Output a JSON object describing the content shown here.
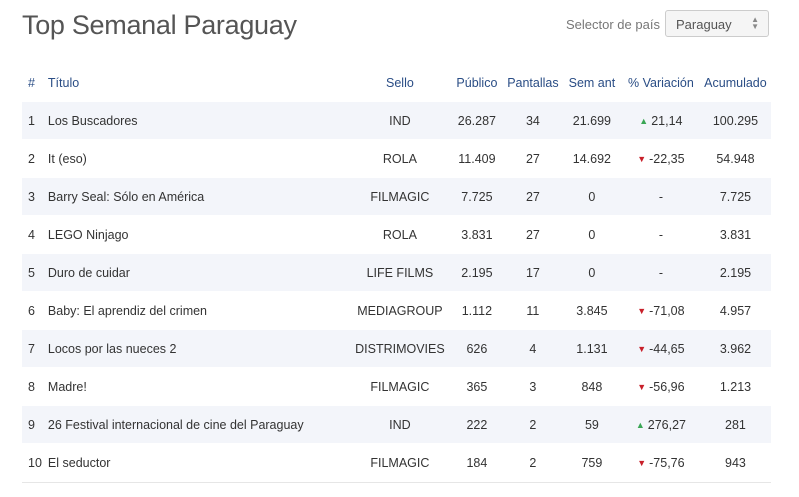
{
  "header": {
    "title": "Top Semanal Paraguay",
    "selector_label": "Selector de país",
    "selected_country": "Paraguay"
  },
  "table": {
    "columns": [
      "#",
      "Título",
      "Sello",
      "Público",
      "Pantallas",
      "Sem ant",
      "% Variación",
      "Acumulado"
    ],
    "rows": [
      {
        "rank": "1",
        "title": "Los Buscadores",
        "label": "IND",
        "audience": "26.287",
        "screens": "34",
        "prev_week": "21.699",
        "variation": "21,14",
        "trend": "up",
        "cumulative": "100.295"
      },
      {
        "rank": "2",
        "title": "It (eso)",
        "label": "ROLA",
        "audience": "11.409",
        "screens": "27",
        "prev_week": "14.692",
        "variation": "-22,35",
        "trend": "down",
        "cumulative": "54.948"
      },
      {
        "rank": "3",
        "title": "Barry Seal: Sólo en América",
        "label": "FILMAGIC",
        "audience": "7.725",
        "screens": "27",
        "prev_week": "0",
        "variation": "-",
        "trend": "none",
        "cumulative": "7.725"
      },
      {
        "rank": "4",
        "title": "LEGO Ninjago",
        "label": "ROLA",
        "audience": "3.831",
        "screens": "27",
        "prev_week": "0",
        "variation": "-",
        "trend": "none",
        "cumulative": "3.831"
      },
      {
        "rank": "5",
        "title": "Duro de cuidar",
        "label": "LIFE FILMS",
        "audience": "2.195",
        "screens": "17",
        "prev_week": "0",
        "variation": "-",
        "trend": "none",
        "cumulative": "2.195"
      },
      {
        "rank": "6",
        "title": "Baby: El aprendiz del crimen",
        "label": "MEDIAGROUP",
        "audience": "1.112",
        "screens": "11",
        "prev_week": "3.845",
        "variation": "-71,08",
        "trend": "down",
        "cumulative": "4.957"
      },
      {
        "rank": "7",
        "title": "Locos por las nueces 2",
        "label": "DISTRIMOVIES",
        "audience": "626",
        "screens": "4",
        "prev_week": "1.131",
        "variation": "-44,65",
        "trend": "down",
        "cumulative": "3.962"
      },
      {
        "rank": "8",
        "title": "Madre!",
        "label": "FILMAGIC",
        "audience": "365",
        "screens": "3",
        "prev_week": "848",
        "variation": "-56,96",
        "trend": "down",
        "cumulative": "1.213"
      },
      {
        "rank": "9",
        "title": "26 Festival internacional de cine del Paraguay",
        "label": "IND",
        "audience": "222",
        "screens": "2",
        "prev_week": "59",
        "variation": "276,27",
        "trend": "up",
        "cumulative": "281"
      },
      {
        "rank": "10",
        "title": "El seductor",
        "label": "FILMAGIC",
        "audience": "184",
        "screens": "2",
        "prev_week": "759",
        "variation": "-75,76",
        "trend": "down",
        "cumulative": "943"
      }
    ]
  },
  "colors": {
    "header_text": "#2a4d85",
    "row_stripe": "#f3f5fa",
    "trend_up": "#3aa655",
    "trend_down": "#c8202a"
  },
  "icons": {
    "trend_up": "triangle-up-icon",
    "trend_down": "triangle-down-icon",
    "select_caret": "up-down-caret-icon"
  }
}
